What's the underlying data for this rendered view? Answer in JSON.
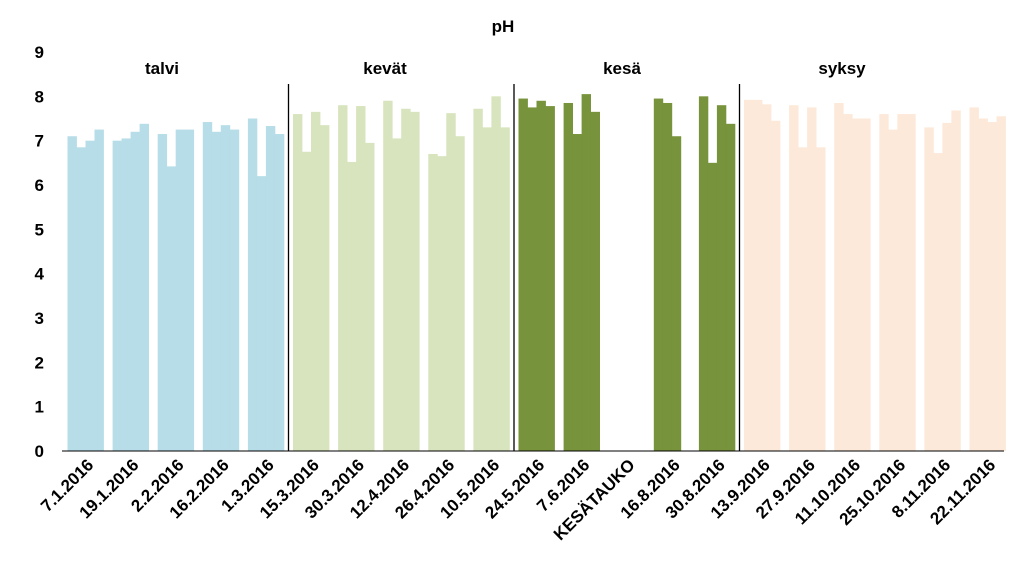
{
  "chart_data": {
    "type": "bar",
    "title": "pH",
    "ylim": [
      0,
      9
    ],
    "yticks": [
      "0",
      "1",
      "2",
      "3",
      "4",
      "5",
      "6",
      "7",
      "8",
      "9"
    ],
    "grid": false,
    "legend": "none",
    "x_tick_labels": [
      "7.1.2016",
      "19.1.2016",
      "2.2.2016",
      "16.2.2016",
      "1.3.2016",
      "15.3.2016",
      "30.3.2016",
      "12.4.2016",
      "26.4.2016",
      "10.5.2016",
      "24.5.2016",
      "7.6.2016",
      "KESÄTAUKO",
      "16.8.2016",
      "30.8.2016",
      "13.9.2016",
      "27.9.2016",
      "11.10.2016",
      "25.10.2016",
      "8.11.2016",
      "22.11.2016"
    ],
    "season_labels": [
      "talvi",
      "kevät",
      "kesä",
      "syksy"
    ],
    "colors": {
      "talvi": "#b7dde8",
      "kevat": "#d7e4bd",
      "kesa": "#77933c",
      "syksy": "#fde9d9",
      "divider": "#000000"
    },
    "groups": [
      {
        "season": "talvi",
        "label": "7.1.2016",
        "values": [
          7.1,
          6.85,
          7.0,
          7.25
        ]
      },
      {
        "season": "talvi",
        "label": "19.1.2016",
        "values": [
          7.0,
          7.05,
          7.2,
          7.38
        ]
      },
      {
        "season": "talvi",
        "label": "2.2.2016",
        "values": [
          7.15,
          6.42,
          7.25,
          7.25
        ]
      },
      {
        "season": "talvi",
        "label": "16.2.2016",
        "values": [
          7.42,
          7.2,
          7.35,
          7.25
        ]
      },
      {
        "season": "talvi",
        "label": "1.3.2016",
        "values": [
          7.5,
          6.2,
          7.33,
          7.15
        ]
      },
      {
        "season": "kevat",
        "label": "15.3.2016",
        "values": [
          7.6,
          6.75,
          7.65,
          7.35
        ]
      },
      {
        "season": "kevat",
        "label": "30.3.2016",
        "values": [
          7.8,
          6.52,
          7.78,
          6.95
        ]
      },
      {
        "season": "kevat",
        "label": "12.4.2016",
        "values": [
          7.9,
          7.05,
          7.72,
          7.65
        ]
      },
      {
        "season": "kevat",
        "label": "26.4.2016",
        "values": [
          6.7,
          6.65,
          7.62,
          7.1
        ]
      },
      {
        "season": "kevat",
        "label": "10.5.2016",
        "values": [
          7.72,
          7.3,
          8.0,
          7.3
        ]
      },
      {
        "season": "kesa",
        "label": "24.5.2016",
        "values": [
          7.95,
          7.75,
          7.9,
          7.78
        ]
      },
      {
        "season": "kesa",
        "label": "7.6.2016",
        "values": [
          7.85,
          7.15,
          8.05,
          7.65
        ]
      },
      {
        "season": "kesa",
        "label": "KESÄTAUKO",
        "values": []
      },
      {
        "season": "kesa",
        "label": "16.8.2016",
        "values": [
          7.95,
          7.85,
          7.1,
          null
        ]
      },
      {
        "season": "kesa",
        "label": "30.8.2016",
        "values": [
          8.0,
          6.5,
          7.8,
          7.38
        ]
      },
      {
        "season": "syksy",
        "label": "13.9.2016",
        "values": [
          7.92,
          7.92,
          7.82,
          7.45
        ]
      },
      {
        "season": "syksy",
        "label": "27.9.2016",
        "values": [
          7.8,
          6.85,
          7.75,
          6.85
        ]
      },
      {
        "season": "syksy",
        "label": "11.10.2016",
        "values": [
          7.85,
          7.6,
          7.5,
          7.5
        ]
      },
      {
        "season": "syksy",
        "label": "25.10.2016",
        "values": [
          7.6,
          7.25,
          7.6,
          7.6
        ]
      },
      {
        "season": "syksy",
        "label": "8.11.2016",
        "values": [
          7.3,
          6.72,
          7.4,
          7.68
        ]
      },
      {
        "season": "syksy",
        "label": "22.11.2016",
        "values": [
          7.75,
          7.5,
          7.42,
          7.55
        ]
      }
    ]
  }
}
